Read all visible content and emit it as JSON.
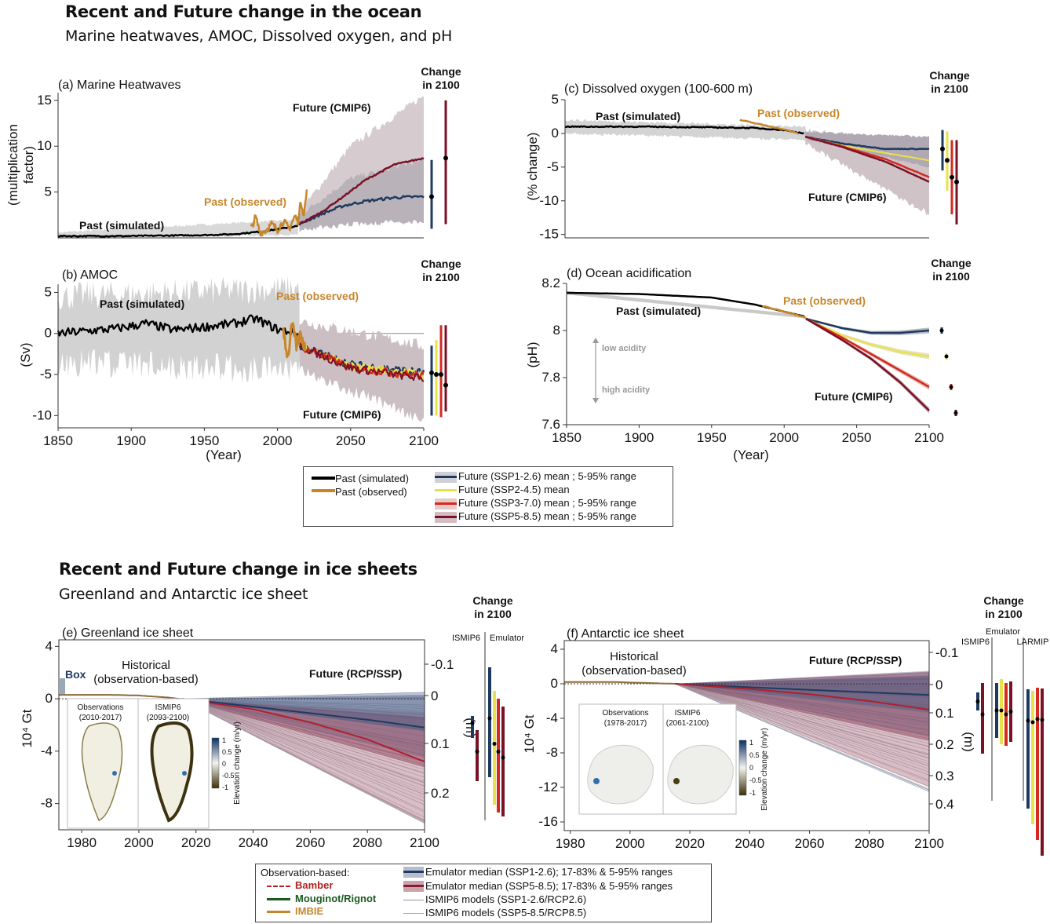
{
  "ocean_section": {
    "title": "Recent and Future change in the ocean",
    "subtitle": "Marine heatwaves, AMOC, Dissolved oxygen, and pH"
  },
  "ice_section": {
    "title": "Recent and Future change in ice sheets",
    "subtitle": "Greenland and Antarctic ice sheet"
  },
  "change_label_line1": "Change",
  "change_label_line2": "in 2100",
  "colors": {
    "past_simulated": "#000000",
    "past_observed": "#c7862a",
    "ssp126": "#1f3a5f",
    "ssp245": "#e8e24a",
    "ssp370": "#d42a1f",
    "ssp585": "#7a1226",
    "range_grey": "#c8c8c8",
    "range_ssp585": "#b79aa4"
  },
  "chart_data": [
    {
      "id": "a",
      "type": "line",
      "title": "(a) Marine Heatwaves",
      "ylabel": "(multiplication factor)",
      "ylabel_line1": "(multiplication",
      "ylabel_line2": "factor)",
      "xlim": [
        1850,
        2100
      ],
      "ylim": [
        0,
        15.5
      ],
      "yticks": [
        5,
        10,
        15
      ],
      "annotations": {
        "past_simulated": "Past (simulated)",
        "past_observed": "Past (observed)",
        "future": "Future (CMIP6)"
      },
      "series": [
        {
          "name": "Past (simulated)",
          "x": [
            1850,
            1900,
            1950,
            1970,
            1990,
            2014
          ],
          "y": [
            0.2,
            0.2,
            0.3,
            0.4,
            0.7,
            1.3
          ]
        },
        {
          "name": "Past (observed)",
          "x": [
            1982,
            1985,
            1988,
            1992,
            1996,
            2000,
            2004,
            2008,
            2012,
            2014,
            2016,
            2018,
            2020
          ],
          "y": [
            1.0,
            2.3,
            0.6,
            0.8,
            1.5,
            0.9,
            1.8,
            1.0,
            2.4,
            1.8,
            4.0,
            2.5,
            5.0
          ]
        },
        {
          "name": "Future (SSP1-2.6) mean",
          "x": [
            2015,
            2030,
            2045,
            2060,
            2080,
            2100
          ],
          "y": [
            1.5,
            2.6,
            3.5,
            4.0,
            4.4,
            4.5
          ]
        },
        {
          "name": "Future (SSP5-8.5) mean",
          "x": [
            2015,
            2030,
            2045,
            2060,
            2080,
            2100
          ],
          "y": [
            1.5,
            2.8,
            4.5,
            6.3,
            8.0,
            8.7
          ]
        }
      ],
      "ranges_5_95": [
        {
          "name": "SSP1-2.6",
          "x": [
            2015,
            2050,
            2100
          ],
          "lo": [
            0.8,
            1.5,
            1.8
          ],
          "hi": [
            2.5,
            6.5,
            8.5
          ]
        },
        {
          "name": "SSP5-8.5",
          "x": [
            2015,
            2050,
            2100
          ],
          "lo": [
            0.8,
            2.2,
            3.5
          ],
          "hi": [
            2.8,
            10.0,
            15.5
          ]
        }
      ],
      "change_2100_bars": [
        {
          "name": "SSP1-2.6",
          "lo": 1.0,
          "hi": 8.5,
          "median": 4.5
        },
        {
          "name": "SSP5-8.5",
          "lo": 1.5,
          "hi": 15.0,
          "median": 8.7
        }
      ]
    },
    {
      "id": "b",
      "type": "line",
      "title": "(b) AMOC",
      "ylabel": "(Sv)",
      "xlabel": "(Year)",
      "xlim": [
        1850,
        2100
      ],
      "ylim": [
        -11.5,
        6
      ],
      "yticks": [
        5,
        0,
        -5,
        -10
      ],
      "xticks": [
        1850,
        1900,
        1950,
        2000,
        2050,
        2100
      ],
      "annotations": {
        "past_simulated": "Past (simulated)",
        "past_observed": "Past (observed)",
        "future": "Future (CMIP6)"
      },
      "series": [
        {
          "name": "Past (simulated)",
          "x": [
            1850,
            1870,
            1890,
            1910,
            1930,
            1950,
            1970,
            1985,
            2000,
            2014
          ],
          "y": [
            0,
            0.3,
            0.6,
            1.2,
            0.4,
            0.8,
            1.2,
            1.8,
            0.5,
            0
          ]
        },
        {
          "name": "Past (observed)",
          "x": [
            2004,
            2007,
            2010,
            2013,
            2016,
            2019
          ],
          "y": [
            0.5,
            -3.0,
            1.0,
            -1.5,
            0.0,
            -2.0
          ]
        },
        {
          "name": "Future (SSP1-2.6) mean",
          "x": [
            2015,
            2050,
            2100
          ],
          "y": [
            -1.5,
            -3.8,
            -4.8
          ]
        },
        {
          "name": "Future (SSP2-4.5) mean",
          "x": [
            2015,
            2050,
            2100
          ],
          "y": [
            -1.5,
            -4.0,
            -5.0
          ]
        },
        {
          "name": "Future (SSP3-7.0) mean",
          "x": [
            2015,
            2050,
            2100
          ],
          "y": [
            -1.5,
            -4.2,
            -5.2
          ]
        },
        {
          "name": "Future (SSP5-8.5) mean",
          "x": [
            2015,
            2050,
            2100
          ],
          "y": [
            -1.5,
            -4.2,
            -5.5
          ]
        }
      ],
      "ranges_5_95": [
        {
          "name": "Past (simulated)",
          "x": [
            1850,
            2015
          ],
          "lo": [
            -3.5,
            -4.5
          ],
          "hi": [
            4.5,
            5.5
          ]
        },
        {
          "name": "SSP5-8.5",
          "x": [
            2015,
            2100
          ],
          "lo": [
            -4.5,
            -10.5
          ],
          "hi": [
            1.5,
            -1.5
          ]
        }
      ],
      "change_2100_bars": [
        {
          "name": "SSP1-2.6",
          "lo": -10.0,
          "hi": -1.5,
          "median": -4.8
        },
        {
          "name": "SSP2-4.5",
          "lo": -10.0,
          "hi": -0.8,
          "median": -5.0
        },
        {
          "name": "SSP3-7.0",
          "lo": -10.2,
          "hi": 1.0,
          "median": -5.0
        },
        {
          "name": "SSP5-8.5",
          "lo": -9.5,
          "hi": 1.0,
          "median": -6.3
        }
      ]
    },
    {
      "id": "c",
      "type": "line",
      "title": "(c) Dissolved oxygen (100-600 m)",
      "ylabel": "(% change)",
      "xlim": [
        1850,
        2100
      ],
      "ylim": [
        -15.5,
        5
      ],
      "yticks": [
        5,
        0,
        -5,
        -10,
        -15
      ],
      "annotations": {
        "past_simulated": "Past (simulated)",
        "past_observed": "Past (observed)",
        "future": "Future (CMIP6)"
      },
      "series": [
        {
          "name": "Past (simulated)",
          "x": [
            1850,
            1900,
            1950,
            1980,
            2000,
            2014
          ],
          "y": [
            1.0,
            1.0,
            0.9,
            0.8,
            0.5,
            0
          ]
        },
        {
          "name": "Past (observed)",
          "x": [
            1970,
            1985,
            2000,
            2010
          ],
          "y": [
            2.0,
            1.3,
            0.6,
            0.0
          ]
        },
        {
          "name": "Future (SSP1-2.6) mean",
          "x": [
            2015,
            2040,
            2070,
            2100
          ],
          "y": [
            -0.5,
            -1.5,
            -2.3,
            -2.3
          ]
        },
        {
          "name": "Future (SSP2-4.5) mean",
          "x": [
            2015,
            2040,
            2070,
            2100
          ],
          "y": [
            -0.5,
            -1.8,
            -2.9,
            -4.0
          ]
        },
        {
          "name": "Future (SSP3-7.0) mean",
          "x": [
            2015,
            2040,
            2070,
            2100
          ],
          "y": [
            -0.5,
            -1.9,
            -3.8,
            -6.5
          ]
        },
        {
          "name": "Future (SSP5-8.5) mean",
          "x": [
            2015,
            2040,
            2070,
            2100
          ],
          "y": [
            -0.5,
            -2.0,
            -4.2,
            -7.2
          ]
        }
      ],
      "ranges_5_95": [
        {
          "name": "Past (simulated)",
          "x": [
            1850,
            2015
          ],
          "lo": [
            0.0,
            -1.0
          ],
          "hi": [
            2.0,
            1.0
          ]
        },
        {
          "name": "SSP5-8.5",
          "x": [
            2015,
            2100
          ],
          "lo": [
            -1.5,
            -12.0
          ],
          "hi": [
            0.5,
            -1.5
          ]
        }
      ],
      "change_2100_bars": [
        {
          "name": "SSP1-2.6",
          "lo": -5.5,
          "hi": 0.5,
          "median": -2.3
        },
        {
          "name": "SSP2-4.5",
          "lo": -8.5,
          "hi": 0.3,
          "median": -4.0
        },
        {
          "name": "SSP3-7.0",
          "lo": -12.0,
          "hi": -1.0,
          "median": -6.5
        },
        {
          "name": "SSP5-8.5",
          "lo": -13.5,
          "hi": -1.0,
          "median": -7.2
        }
      ]
    },
    {
      "id": "d",
      "type": "line",
      "title": "(d) Ocean acidification",
      "ylabel": "(pH)",
      "xlabel": "(Year)",
      "xlim": [
        1850,
        2100
      ],
      "ylim": [
        7.6,
        8.2
      ],
      "yticks": [
        8.2,
        8.0,
        7.8,
        7.6
      ],
      "ytick_labels": [
        "8.2",
        "8",
        "7.8",
        "7.6"
      ],
      "xticks": [
        1850,
        1900,
        1950,
        2000,
        2050,
        2100
      ],
      "annotations": {
        "past_simulated": "Past (simulated)",
        "past_observed": "Past (observed)",
        "future": "Future (CMIP6)",
        "low_acidity": "low acidity",
        "high_acidity": "high acidity"
      },
      "series": [
        {
          "name": "Past (simulated)",
          "x": [
            1850,
            1900,
            1950,
            1980,
            2000,
            2014
          ],
          "y": [
            8.16,
            8.155,
            8.14,
            8.11,
            8.08,
            8.06
          ]
        },
        {
          "name": "Past (observed)",
          "x": [
            1985,
            2000,
            2015
          ],
          "y": [
            8.105,
            8.08,
            8.055
          ]
        },
        {
          "name": "Future (SSP1-2.6) mean",
          "x": [
            2015,
            2040,
            2060,
            2080,
            2100
          ],
          "y": [
            8.05,
            8.01,
            7.99,
            7.99,
            8.0
          ]
        },
        {
          "name": "Future (SSP2-4.5) mean",
          "x": [
            2015,
            2040,
            2060,
            2080,
            2100
          ],
          "y": [
            8.05,
            7.98,
            7.94,
            7.91,
            7.89
          ]
        },
        {
          "name": "Future (SSP3-7.0) mean",
          "x": [
            2015,
            2040,
            2060,
            2080,
            2100
          ],
          "y": [
            8.05,
            7.97,
            7.9,
            7.83,
            7.76
          ]
        },
        {
          "name": "Future (SSP5-8.5) mean",
          "x": [
            2015,
            2040,
            2060,
            2080,
            2100
          ],
          "y": [
            8.05,
            7.96,
            7.88,
            7.78,
            7.66
          ]
        }
      ],
      "change_2100_points": [
        {
          "name": "SSP1-2.6",
          "value": 8.0
        },
        {
          "name": "SSP2-4.5",
          "value": 7.89
        },
        {
          "name": "SSP3-7.0",
          "value": 7.76
        },
        {
          "name": "SSP5-8.5",
          "value": 7.65
        }
      ]
    },
    {
      "id": "e",
      "type": "area",
      "title": "(e) Greenland ice sheet",
      "ylabel": "10⁴ Gt",
      "ylabel_right": "(m)",
      "xlim": [
        1972,
        2100
      ],
      "ylim": [
        -10,
        4.5
      ],
      "yticks": [
        4,
        0,
        -4,
        -8
      ],
      "yticks_right": [
        -0.1,
        0,
        0.1,
        0.2
      ],
      "xticks": [
        1980,
        2000,
        2020,
        2040,
        2060,
        2080,
        2100
      ],
      "annotations": {
        "box": "Box",
        "historical_line1": "Historical",
        "historical_line2": "(observation-based)",
        "future": "Future (RCP/SSP)",
        "bar_group1": "ISMIP6",
        "bar_group2": "Emulator"
      },
      "series": [
        {
          "name": "Emulator median (SSP1-2.6)",
          "x": [
            2015,
            2040,
            2060,
            2080,
            2100
          ],
          "y": [
            0,
            -0.6,
            -1.1,
            -1.6,
            -2.2
          ]
        },
        {
          "name": "Emulator median (SSP5-8.5)",
          "x": [
            2015,
            2040,
            2060,
            2080,
            2100
          ],
          "y": [
            0,
            -0.8,
            -1.8,
            -3.1,
            -4.8
          ]
        },
        {
          "name": "Observation-based",
          "x": [
            1972,
            1990,
            2000,
            2010,
            2018
          ],
          "y": [
            0.3,
            0.3,
            0.25,
            0.1,
            -0.1
          ]
        }
      ],
      "ranges_5_95": [
        {
          "name": "SSP1-2.6",
          "x": [
            2015,
            2100
          ],
          "lo": [
            0,
            -4.5
          ],
          "hi": [
            0,
            0.5
          ]
        },
        {
          "name": "SSP5-8.5",
          "x": [
            2015,
            2100
          ],
          "lo": [
            0,
            -9.5
          ],
          "hi": [
            0,
            -1.0
          ]
        }
      ],
      "inset_maps": [
        {
          "label_line1": "Observations",
          "label_line2": "(2010-2017)"
        },
        {
          "label_line1": "ISMIP6",
          "label_line2": "(2093-2100)"
        }
      ],
      "colorbar": {
        "label": "Elevation change (m/yr)",
        "ticks": [
          "1",
          "0.5",
          "0",
          "-0.5",
          "-1"
        ]
      }
    },
    {
      "id": "f",
      "type": "area",
      "title": "(f) Antarctic ice sheet",
      "ylabel": "10⁴ Gt",
      "ylabel_right": "(m)",
      "xlim": [
        1978,
        2100
      ],
      "ylim": [
        -17,
        5
      ],
      "yticks": [
        4,
        0,
        -4,
        -8,
        -12,
        -16
      ],
      "yticks_right": [
        -0.1,
        0,
        0.1,
        0.2,
        0.3,
        0.4
      ],
      "xticks": [
        1980,
        2000,
        2020,
        2040,
        2060,
        2080,
        2100
      ],
      "annotations": {
        "historical_line1": "Historical",
        "historical_line2": "(observation-based)",
        "future": "Future (RCP/SSP)",
        "bar_group1": "ISMIP6",
        "bar_group2": "Emulator",
        "bar_group3": "LARMIP"
      },
      "series": [
        {
          "name": "Emulator median (SSP1-2.6)",
          "x": [
            2015,
            2040,
            2060,
            2080,
            2100
          ],
          "y": [
            0,
            -0.4,
            -0.7,
            -1.0,
            -1.3
          ]
        },
        {
          "name": "Emulator median (SSP5-8.5)",
          "x": [
            2015,
            2040,
            2060,
            2080,
            2100
          ],
          "y": [
            0,
            -0.6,
            -1.2,
            -2.0,
            -3.0
          ]
        },
        {
          "name": "Observation-based",
          "x": [
            1978,
            1995,
            2005,
            2015
          ],
          "y": [
            0.2,
            0.2,
            0.1,
            0
          ]
        }
      ],
      "ranges_5_95": [
        {
          "name": "SSP1-2.6",
          "x": [
            2015,
            2100
          ],
          "lo": [
            0,
            -6.0
          ],
          "hi": [
            0,
            1.5
          ]
        },
        {
          "name": "SSP5-8.5",
          "x": [
            2015,
            2100
          ],
          "lo": [
            0,
            -12.0
          ],
          "hi": [
            0,
            1.0
          ]
        }
      ],
      "inset_maps": [
        {
          "label_line1": "Observations",
          "label_line2": "(1978-2017)"
        },
        {
          "label_line1": "ISMIP6",
          "label_line2": "(2061-2100)"
        }
      ],
      "colorbar": {
        "label": "Elevation change (m/yr)",
        "ticks": [
          "1",
          "0.5",
          "0",
          "-0.5",
          "-1"
        ]
      }
    }
  ],
  "ocean_legend": {
    "left": [
      "Past (simulated)",
      "Past (observed)"
    ],
    "right": [
      "Future (SSP1-2.6) mean ; 5-95% range",
      "Future (SSP2-4.5) mean",
      "Future (SSP3-7.0) mean ; 5-95% range",
      "Future (SSP5-8.5) mean ; 5-95% range"
    ]
  },
  "ice_legend": {
    "obs_header": "Observation-based:",
    "obs_items": [
      "Bamber",
      "Mouginot/Rignot",
      "IMBIE"
    ],
    "items": [
      "Emulator median (SSP1-2.6); 17-83% & 5-95% ranges",
      "Emulator median (SSP5-8.5); 17-83% & 5-95% ranges",
      "ISMIP6 models  (SSP1-2.6/RCP2.6)",
      "ISMIP6 models  (SSP5-8.5/RCP8.5)"
    ]
  }
}
